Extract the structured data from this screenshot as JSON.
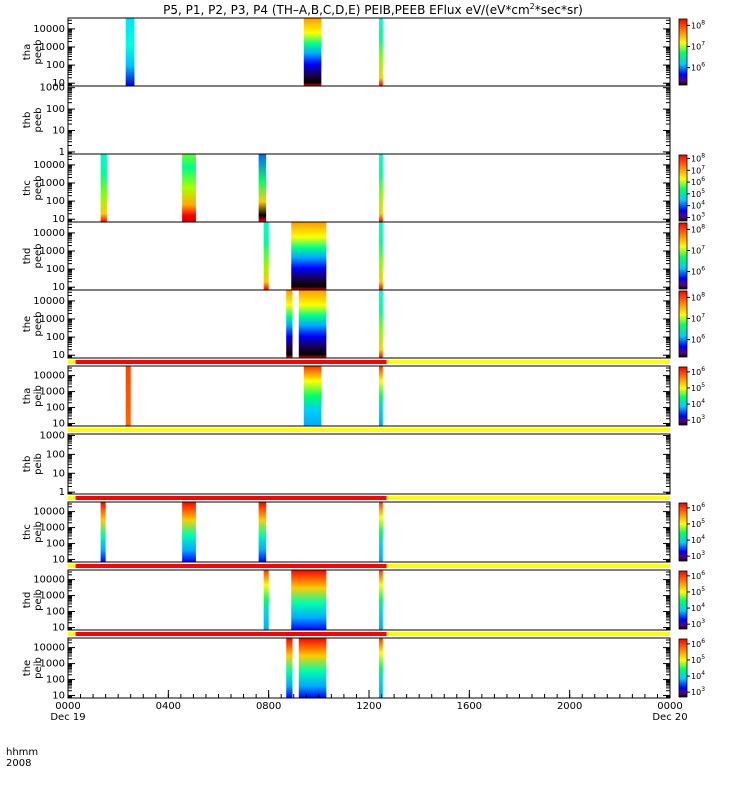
{
  "chart_data": {
    "type": "heatmap",
    "title": "P5, P1, P2, P3, P4 (TH–A,B,C,D,E) PEIB,PEEB EFlux eV/(eV*cm",
    "title_sup": "2",
    "title_end": "*sec*sr)",
    "time_label_hhmm": "hhmm",
    "time_label_year": "2008",
    "x_axis": {
      "range_hours": [
        0,
        24
      ],
      "tick_labels": [
        "0000",
        "0400",
        "0800",
        "1200",
        "1600",
        "2000",
        "0000"
      ],
      "tick_hours": [
        0,
        4,
        8,
        12,
        16,
        20,
        24
      ],
      "date_labels": [
        {
          "hour": 0,
          "text": "Dec 19"
        },
        {
          "hour": 24,
          "text": "Dec 20"
        }
      ]
    },
    "panels": [
      {
        "probe": "tha",
        "product": "peeb",
        "ylim": [
          7,
          40000
        ],
        "yticks": [
          "10",
          "100",
          "1000",
          "10000"
        ],
        "yvals": [
          10,
          100,
          1000,
          10000
        ],
        "colorbar": {
          "labels": [
            "10",
            "10",
            "10"
          ],
          "exps": [
            "8",
            "7",
            "6"
          ],
          "vals": [
            100000000.0,
            10000000.0,
            1000000.0
          ],
          "cmin": 150000.0,
          "cmax": 200000000.0
        },
        "bursts": [
          {
            "start": 2.3,
            "end": 2.65,
            "style": "cool"
          },
          {
            "start": 9.4,
            "end": 10.1,
            "style": "iono"
          },
          {
            "start": 12.4,
            "end": 12.55,
            "style": "warm"
          }
        ],
        "flag_bar": null
      },
      {
        "probe": "thb",
        "product": "peeb",
        "ylim": [
          0.8,
          1200
        ],
        "yticks": [
          "1",
          "10",
          "100",
          "1000"
        ],
        "yvals": [
          1,
          10,
          100,
          1000
        ],
        "colorbar": null,
        "bursts": [],
        "flag_bar": null
      },
      {
        "probe": "thc",
        "product": "peeb",
        "ylim": [
          7,
          40000
        ],
        "yticks": [
          "10",
          "100",
          "1000",
          "10000"
        ],
        "yvals": [
          10,
          100,
          1000,
          10000
        ],
        "colorbar": {
          "labels": [
            "10",
            "10",
            "10",
            "10",
            "10",
            "10"
          ],
          "exps": [
            "8",
            "7",
            "6",
            "5",
            "4",
            "3"
          ],
          "vals": [
            100000000.0,
            10000000.0,
            1000000.0,
            100000.0,
            10000.0,
            1000.0
          ],
          "cmin": 500,
          "cmax": 200000000.0
        },
        "bursts": [
          {
            "start": 1.3,
            "end": 1.55,
            "style": "warm"
          },
          {
            "start": 4.55,
            "end": 5.1,
            "style": "warmhot"
          },
          {
            "start": 7.6,
            "end": 7.9,
            "style": "warmcool"
          },
          {
            "start": 12.4,
            "end": 12.55,
            "style": "warm"
          }
        ],
        "flag_bar": null
      },
      {
        "probe": "thd",
        "product": "peeb",
        "ylim": [
          7,
          40000
        ],
        "yticks": [
          "10",
          "100",
          "1000",
          "10000"
        ],
        "yvals": [
          10,
          100,
          1000,
          10000
        ],
        "colorbar": {
          "labels": [
            "10",
            "10",
            "10"
          ],
          "exps": [
            "8",
            "7",
            "6"
          ],
          "vals": [
            100000000.0,
            10000000.0,
            1000000.0
          ],
          "cmin": 150000.0,
          "cmax": 200000000.0
        },
        "bursts": [
          {
            "start": 7.8,
            "end": 8.0,
            "style": "warm"
          },
          {
            "start": 8.9,
            "end": 10.3,
            "style": "iono"
          },
          {
            "start": 12.4,
            "end": 12.55,
            "style": "warm"
          }
        ],
        "flag_bar": null
      },
      {
        "probe": "the",
        "product": "peeb",
        "ylim": [
          7,
          40000
        ],
        "yticks": [
          "10",
          "100",
          "1000",
          "10000"
        ],
        "yvals": [
          10,
          100,
          1000,
          10000
        ],
        "colorbar": {
          "labels": [
            "10",
            "10",
            "10"
          ],
          "exps": [
            "8",
            "7",
            "6"
          ],
          "vals": [
            100000000.0,
            10000000.0,
            1000000.0
          ],
          "cmin": 150000.0,
          "cmax": 200000000.0
        },
        "bursts": [
          {
            "start": 8.7,
            "end": 8.95,
            "style": "iono"
          },
          {
            "start": 9.2,
            "end": 10.3,
            "style": "iono"
          },
          {
            "start": 12.4,
            "end": 12.55,
            "style": "warm"
          }
        ],
        "flag_bar": null
      },
      {
        "probe": "tha",
        "product": "peib",
        "ylim": [
          7,
          40000
        ],
        "yticks": [
          "10",
          "100",
          "1000",
          "10000"
        ],
        "yvals": [
          10,
          100,
          1000,
          10000
        ],
        "colorbar": {
          "labels": [
            "10",
            "10",
            "10",
            "10"
          ],
          "exps": [
            "6",
            "5",
            "4",
            "3"
          ],
          "vals": [
            1000000.0,
            100000.0,
            10000.0,
            1000.0
          ],
          "cmin": 500,
          "cmax": 2000000.0
        },
        "bursts": [
          {
            "start": 2.3,
            "end": 2.5,
            "style": "orange"
          },
          {
            "start": 9.4,
            "end": 10.1,
            "style": "ion"
          },
          {
            "start": 12.4,
            "end": 12.55,
            "style": "ion"
          }
        ],
        "flag_bar": {
          "segments": [
            {
              "start": 0,
              "end": 0.3,
              "color": "#ffff00"
            },
            {
              "start": 0.3,
              "end": 12.7,
              "color": "#ff0000"
            },
            {
              "start": 12.7,
              "end": 24,
              "color": "#ffff00"
            }
          ]
        }
      },
      {
        "probe": "thb",
        "product": "peib",
        "ylim": [
          0.8,
          1200
        ],
        "yticks": [
          "1",
          "10",
          "100",
          "1000"
        ],
        "yvals": [
          1,
          10,
          100,
          1000
        ],
        "colorbar": null,
        "bursts": [],
        "flag_bar": {
          "segments": [
            {
              "start": 0,
              "end": 24,
              "color": "#ffff00"
            }
          ]
        }
      },
      {
        "probe": "thc",
        "product": "peib",
        "ylim": [
          7,
          40000
        ],
        "yticks": [
          "10",
          "100",
          "1000",
          "10000"
        ],
        "yvals": [
          10,
          100,
          1000,
          10000
        ],
        "colorbar": {
          "labels": [
            "10",
            "10",
            "10",
            "10"
          ],
          "exps": [
            "6",
            "5",
            "4",
            "3"
          ],
          "vals": [
            1000000.0,
            100000.0,
            10000.0,
            1000.0
          ],
          "cmin": 500,
          "cmax": 2000000.0
        },
        "bursts": [
          {
            "start": 1.3,
            "end": 1.5,
            "style": "ionhot"
          },
          {
            "start": 4.55,
            "end": 5.1,
            "style": "ionhot"
          },
          {
            "start": 7.6,
            "end": 7.9,
            "style": "ionhot"
          },
          {
            "start": 12.4,
            "end": 12.55,
            "style": "ion"
          }
        ],
        "flag_bar": {
          "segments": [
            {
              "start": 0,
              "end": 0.3,
              "color": "#ffff00"
            },
            {
              "start": 0.3,
              "end": 12.7,
              "color": "#ff0000"
            },
            {
              "start": 12.7,
              "end": 24,
              "color": "#ffff00"
            }
          ]
        }
      },
      {
        "probe": "thd",
        "product": "peib",
        "ylim": [
          7,
          40000
        ],
        "yticks": [
          "10",
          "100",
          "1000",
          "10000"
        ],
        "yvals": [
          10,
          100,
          1000,
          10000
        ],
        "colorbar": {
          "labels": [
            "10",
            "10",
            "10",
            "10"
          ],
          "exps": [
            "6",
            "5",
            "4",
            "3"
          ],
          "vals": [
            1000000.0,
            100000.0,
            10000.0,
            1000.0
          ],
          "cmin": 500,
          "cmax": 2000000.0
        },
        "bursts": [
          {
            "start": 7.8,
            "end": 8.0,
            "style": "ion"
          },
          {
            "start": 8.9,
            "end": 10.3,
            "style": "ionhot"
          },
          {
            "start": 12.4,
            "end": 12.55,
            "style": "ion"
          }
        ],
        "flag_bar": {
          "segments": [
            {
              "start": 0,
              "end": 0.3,
              "color": "#ffff00"
            },
            {
              "start": 0.3,
              "end": 12.7,
              "color": "#ff0000"
            },
            {
              "start": 12.7,
              "end": 24,
              "color": "#ffff00"
            }
          ]
        }
      },
      {
        "probe": "the",
        "product": "peib",
        "ylim": [
          7,
          40000
        ],
        "yticks": [
          "10",
          "100",
          "1000",
          "10000"
        ],
        "yvals": [
          10,
          100,
          1000,
          10000
        ],
        "colorbar": {
          "labels": [
            "10",
            "10",
            "10",
            "10"
          ],
          "exps": [
            "6",
            "5",
            "4",
            "3"
          ],
          "vals": [
            1000000.0,
            100000.0,
            10000.0,
            1000.0
          ],
          "cmin": 500,
          "cmax": 2000000.0
        },
        "bursts": [
          {
            "start": 8.7,
            "end": 8.95,
            "style": "ionhot"
          },
          {
            "start": 9.2,
            "end": 10.3,
            "style": "ionhot"
          },
          {
            "start": 12.4,
            "end": 12.55,
            "style": "ion"
          }
        ],
        "flag_bar": {
          "segments": [
            {
              "start": 0,
              "end": 0.3,
              "color": "#ffff00"
            },
            {
              "start": 0.3,
              "end": 12.7,
              "color": "#ff0000"
            },
            {
              "start": 12.7,
              "end": 24,
              "color": "#ffff00"
            }
          ]
        }
      }
    ]
  }
}
